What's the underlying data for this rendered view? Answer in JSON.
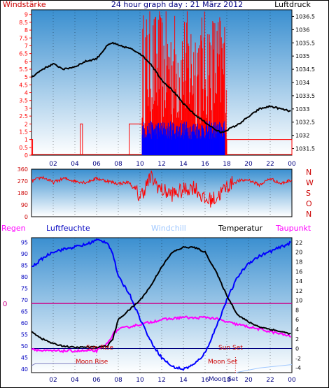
{
  "header": {
    "left_label": "Windstärke",
    "title": "24 hour graph day : 21 März 2012",
    "right_label": "Luftdruck"
  },
  "colors": {
    "wind": "#ff0000",
    "pressure": "#000000",
    "gust": "#0000ff",
    "direction": "#ff0000",
    "humidity": "#0000ff",
    "temperature": "#000000",
    "dewpoint": "#ff00ff",
    "windchill": "#a0c8ff",
    "rain": "#ff00ff",
    "sun_line": "#000080",
    "moon_line": "#8080c0",
    "zero_line": "#cc0088",
    "left_axis": "#ff0000",
    "bottom_axis": "#000080"
  },
  "chart_data": [
    {
      "type": "line",
      "title": "24 hour graph day : 21 März 2012",
      "x_ticks": [
        "02",
        "04",
        "06",
        "08",
        "10",
        "12",
        "14",
        "16",
        "18",
        "20",
        "22",
        "00"
      ],
      "left_axis": {
        "label": "Windstärke",
        "ticks": [
          "0",
          "0.5",
          "1",
          "1.5",
          "2",
          "2.5",
          "3",
          "3.5",
          "4",
          "4.5",
          "5",
          "5.5",
          "6",
          "6.5",
          "7",
          "7.5",
          "8",
          "8.5",
          "9"
        ],
        "range": [
          0,
          9.3
        ]
      },
      "right_axis": {
        "label": "Luftdruck",
        "ticks": [
          "1031.5",
          "1032",
          "1032.5",
          "1033",
          "1033.5",
          "1034",
          "1034.5",
          "1035",
          "1035.5",
          "1036",
          "1036.5"
        ],
        "range": [
          1031.25,
          1036.75
        ]
      },
      "series": [
        {
          "name": "Luftdruck",
          "x": [
            0,
            1,
            2,
            3,
            4,
            5,
            6,
            7,
            7.5,
            8,
            9,
            10,
            11,
            12,
            13,
            14,
            15,
            16,
            17,
            17.5,
            18,
            19,
            20,
            21,
            22,
            23,
            24
          ],
          "values": [
            1034.2,
            1034.5,
            1034.7,
            1034.5,
            1034.6,
            1034.8,
            1034.9,
            1035.4,
            1035.5,
            1035.4,
            1035.3,
            1035.1,
            1034.7,
            1034.1,
            1033.7,
            1033.2,
            1032.8,
            1032.5,
            1032.2,
            1032.1,
            1032.2,
            1032.4,
            1032.7,
            1033,
            1033.1,
            1033.0,
            1032.9
          ]
        },
        {
          "name": "Windstärke",
          "segments": [
            [
              0,
              0.1,
              1
            ],
            [
              4.5,
              4.7,
              2
            ],
            [
              9,
              10.2,
              2
            ],
            [
              10.2,
              18,
              5.5
            ],
            [
              18,
              24,
              1
            ]
          ]
        },
        {
          "name": "Böen",
          "segments": [
            [
              10.2,
              17.8,
              2
            ]
          ]
        }
      ]
    },
    {
      "type": "line",
      "left_axis": {
        "ticks": [
          "0",
          "90",
          "180",
          "270",
          "360"
        ],
        "range": [
          0,
          360
        ]
      },
      "right_axis": {
        "ticks": [
          "N",
          "W",
          "S",
          "O",
          "N"
        ]
      },
      "series": [
        {
          "name": "Windrichtung",
          "x": [
            0,
            1,
            2,
            3,
            4,
            5,
            6,
            7,
            8,
            9,
            10,
            11,
            12,
            13,
            14,
            15,
            16,
            17,
            18,
            19,
            20,
            21,
            22,
            23,
            24
          ],
          "values": [
            270,
            300,
            260,
            290,
            270,
            260,
            290,
            270,
            250,
            260,
            150,
            300,
            200,
            170,
            200,
            230,
            120,
            140,
            230,
            270,
            280,
            240,
            290,
            250,
            280
          ]
        }
      ]
    },
    {
      "type": "line",
      "legend": [
        "Regen",
        "Luftfeuchte",
        "Windchill",
        "Temperatur",
        "Taupunkt"
      ],
      "left_axis": {
        "ticks": [
          "40",
          "45",
          "50",
          "55",
          "60",
          "65",
          "70",
          "75",
          "80",
          "85",
          "90",
          "95"
        ],
        "range": [
          38.5,
          97
        ],
        "zero_label": "0"
      },
      "right_axis": {
        "ticks": [
          "-4",
          "-2",
          "0",
          "2",
          "4",
          "6",
          "8",
          "10",
          "12",
          "14",
          "16",
          "18",
          "20",
          "22"
        ],
        "range": [
          -5,
          23
        ]
      },
      "annotations": [
        "Sun Rise",
        "Moon Rise",
        "Sun Set",
        "Moon Set",
        "Moon Set"
      ],
      "series": [
        {
          "name": "Luftfeuchte",
          "x": [
            0,
            1,
            2,
            3,
            4,
            5,
            6,
            7,
            7.5,
            8,
            9,
            10,
            11,
            12,
            13,
            14,
            15,
            16,
            17,
            18,
            19,
            20,
            21,
            22,
            23,
            24
          ],
          "values": [
            84,
            88,
            91,
            92,
            93,
            94,
            96,
            95,
            90,
            80,
            73,
            62,
            52,
            45,
            41,
            40,
            42,
            47,
            58,
            70,
            80,
            86,
            89,
            91,
            93,
            95
          ]
        },
        {
          "name": "Temperatur",
          "x": [
            0,
            1,
            2,
            3,
            4,
            5,
            6,
            7,
            7.5,
            8,
            9,
            10,
            11,
            12,
            13,
            14,
            15,
            16,
            17,
            18,
            19,
            20,
            21,
            22,
            23,
            24
          ],
          "values": [
            3.5,
            2,
            1,
            0.5,
            0.2,
            0.3,
            0.3,
            0.5,
            2,
            6,
            8,
            10,
            13,
            17,
            20,
            21,
            21,
            20,
            16,
            11,
            7,
            5.5,
            4.5,
            4,
            3.5,
            3
          ]
        },
        {
          "name": "Taupunkt",
          "x": [
            0,
            1,
            2,
            3,
            4,
            5,
            6,
            7,
            7.5,
            8,
            9,
            10,
            11,
            12,
            13,
            14,
            15,
            16,
            17,
            18,
            19,
            20,
            21,
            22,
            23,
            24
          ],
          "values": [
            0,
            -0.5,
            -0.5,
            -0.5,
            -0.5,
            -0.5,
            -0.5,
            1,
            3,
            4,
            4.5,
            5,
            5.5,
            6,
            6.2,
            6.5,
            6.3,
            6.5,
            6.2,
            5.5,
            5,
            4.5,
            4,
            3.5,
            3,
            2.5
          ]
        }
      ]
    }
  ],
  "labels": {
    "x_ticks": [
      "02",
      "04",
      "06",
      "08",
      "10",
      "12",
      "14",
      "16",
      "18",
      "20",
      "22",
      "00"
    ],
    "wind_ticks": [
      "0",
      "0.5",
      "1",
      "1.5",
      "2",
      "2.5",
      "3",
      "3.5",
      "4",
      "4.5",
      "5",
      "5.5",
      "6",
      "6.5",
      "7",
      "7.5",
      "8",
      "8.5",
      "9"
    ],
    "pressure_ticks": [
      "1031.5",
      "1032",
      "1032.5",
      "1033",
      "1033.5",
      "1034",
      "1034.5",
      "1035",
      "1035.5",
      "1036",
      "1036.5"
    ],
    "dir_ticks": [
      "0",
      "90",
      "180",
      "270",
      "360"
    ],
    "dir_letters": [
      "N",
      "W",
      "S",
      "O",
      "N"
    ],
    "hum_ticks": [
      "40",
      "45",
      "50",
      "55",
      "60",
      "65",
      "70",
      "75",
      "80",
      "85",
      "90",
      "95"
    ],
    "temp_ticks": [
      "-4",
      "-2",
      "0",
      "2",
      "4",
      "6",
      "8",
      "10",
      "12",
      "14",
      "16",
      "18",
      "20",
      "22"
    ],
    "rain_zero": "0",
    "legend_rain": "Regen",
    "legend_humidity": "Luftfeuchte",
    "legend_windchill": "Windchill",
    "legend_temperature": "Temperatur",
    "legend_dewpoint": "Taupunkt",
    "sun_rise": "Sun Rise",
    "moon_rise": "Moon Rise",
    "sun_set": "Sun Set",
    "moon_set": "Moon Set",
    "moon_set_bottom": "Moon Set"
  }
}
